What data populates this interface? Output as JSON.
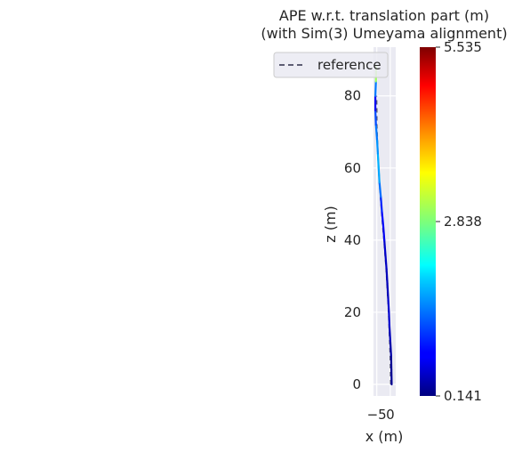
{
  "chart_data": {
    "type": "line",
    "title_line1": "APE w.r.t. translation part (m)",
    "title_line2": "(with Sim(3) Umeyama alignment)",
    "xlabel": "x (m)",
    "ylabel": "z (m)",
    "xlim": [
      -6.2,
      2.0
    ],
    "ylim": [
      -3.2,
      93.5
    ],
    "xticks": [
      -5,
      0
    ],
    "yticks": [
      0,
      20,
      40,
      60,
      80
    ],
    "grid": true,
    "legend": {
      "placement": "top-right",
      "entries": [
        {
          "label": "reference",
          "style": "dashed",
          "color": "#5d5d73"
        }
      ]
    },
    "colorbar": {
      "colormap": "jet",
      "min": 0.141,
      "max": 5.535,
      "ticks": [
        0.141,
        2.838,
        5.535
      ],
      "tick_labels": [
        "0.141",
        "2.838",
        "5.535"
      ]
    },
    "series": [
      {
        "name": "reference",
        "style": "dashed",
        "points": [
          [
            0.2,
            0
          ],
          [
            0.1,
            4
          ],
          [
            0.0,
            8
          ],
          [
            -0.2,
            12
          ],
          [
            -0.4,
            16
          ],
          [
            -0.6,
            20
          ],
          [
            -0.9,
            24
          ],
          [
            -1.2,
            28
          ],
          [
            -1.5,
            32
          ],
          [
            -1.9,
            36
          ],
          [
            -2.3,
            40
          ],
          [
            -2.8,
            44
          ],
          [
            -3.2,
            48
          ],
          [
            -3.6,
            52
          ],
          [
            -4.0,
            56
          ],
          [
            -4.3,
            60
          ],
          [
            -4.6,
            64
          ],
          [
            -4.8,
            68
          ],
          [
            -5.0,
            72
          ],
          [
            -5.0,
            76
          ],
          [
            -5.1,
            80
          ]
        ]
      },
      {
        "name": "",
        "style": "colored-by-error",
        "points": [
          [
            0.5,
            0
          ],
          [
            0.4,
            4
          ],
          [
            0.3,
            8
          ],
          [
            0.0,
            12
          ],
          [
            -0.3,
            16
          ],
          [
            -0.5,
            20
          ],
          [
            -0.8,
            24
          ],
          [
            -1.1,
            28
          ],
          [
            -1.4,
            32
          ],
          [
            -1.8,
            36
          ],
          [
            -2.2,
            40
          ],
          [
            -2.6,
            44
          ],
          [
            -3.1,
            48
          ],
          [
            -3.5,
            52
          ],
          [
            -4.0,
            56
          ],
          [
            -4.3,
            60
          ],
          [
            -4.6,
            64
          ],
          [
            -4.9,
            68
          ],
          [
            -5.3,
            72
          ],
          [
            -5.5,
            76
          ],
          [
            -5.5,
            80
          ],
          [
            -5.3,
            84
          ],
          [
            -5.2,
            88
          ]
        ],
        "errors": [
          0.3,
          0.2,
          0.3,
          0.4,
          0.5,
          0.6,
          0.5,
          0.4,
          0.5,
          0.5,
          0.6,
          0.9,
          0.8,
          1.2,
          1.6,
          1.8,
          1.7,
          1.5,
          1.4,
          1.0,
          0.5,
          2.4,
          3.6
        ]
      }
    ]
  }
}
